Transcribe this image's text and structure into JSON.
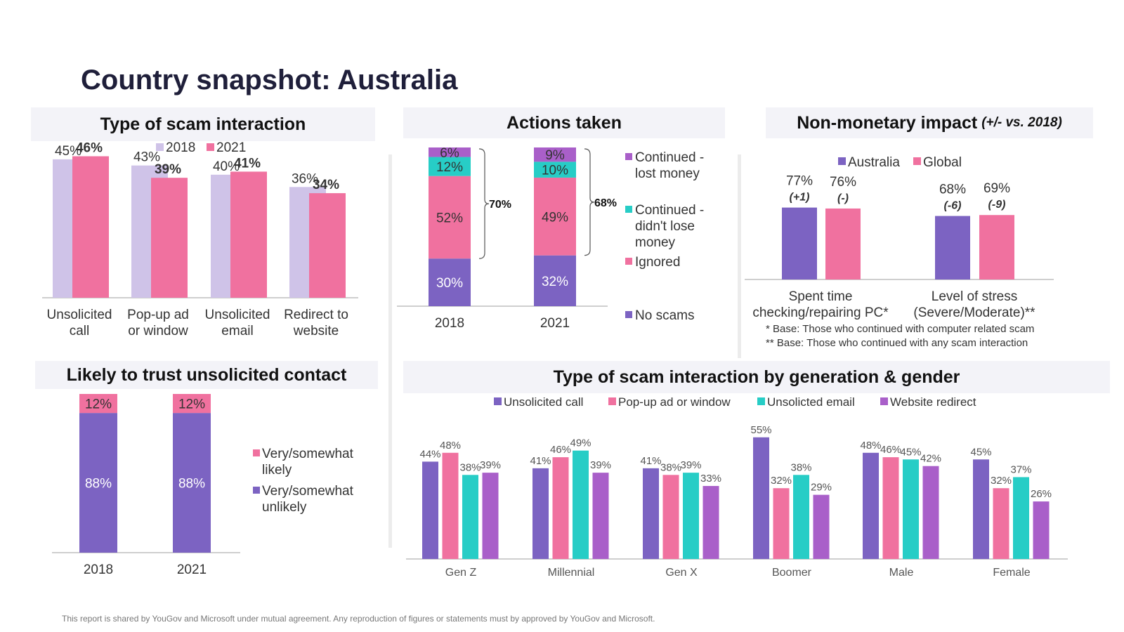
{
  "page": {
    "title": "Country snapshot: Australia",
    "footer": "This report is shared by YouGov and Microsoft under mutual agreement. Any reproduction of figures or statements must by approved by YouGov and Microsoft."
  },
  "colors": {
    "purple": "#7c63c2",
    "pink": "#f0719f",
    "teal": "#27cdc6",
    "violet": "#a95fc9",
    "lavender": "#cfc3e8",
    "panel_bg": "#f3f3f8"
  },
  "panels": {
    "scam_type": {
      "title": "Type of scam interaction"
    },
    "actions": {
      "title": "Actions taken"
    },
    "impact": {
      "title": "Non-monetary impact",
      "subtitle": "(+/- vs. 2018)"
    },
    "trust": {
      "title": "Likely to trust unsolicited contact"
    },
    "generation": {
      "title": "Type of scam interaction by generation & gender"
    }
  },
  "chart_data": [
    {
      "id": "scam_type",
      "type": "bar",
      "categories": [
        "Unsolicited call",
        "Pop-up ad or window",
        "Unsolicited email",
        "Redirect to website"
      ],
      "category_lines": [
        [
          "Unsolicited",
          "call"
        ],
        [
          "Pop-up ad",
          "or window"
        ],
        [
          "Unsolicited",
          "email"
        ],
        [
          "Redirect to",
          "website"
        ]
      ],
      "series": [
        {
          "name": "2018",
          "values": [
            45,
            43,
            40,
            36
          ],
          "labels": [
            "45%",
            "43%",
            "40%",
            "36%"
          ],
          "color": "#cfc3e8"
        },
        {
          "name": "2021",
          "values": [
            46,
            39,
            41,
            34
          ],
          "labels": [
            "46%",
            "39%",
            "41%",
            "34%"
          ],
          "color": "#f0719f"
        }
      ],
      "ylim": [
        0,
        50
      ],
      "legend": "top"
    },
    {
      "id": "actions",
      "type": "bar",
      "stacked": true,
      "categories": [
        "2018",
        "2021"
      ],
      "series": [
        {
          "name": "No scams",
          "values": [
            30,
            32
          ],
          "labels": [
            "30%",
            "32%"
          ],
          "color": "#7c63c2"
        },
        {
          "name": "Ignored",
          "values": [
            52,
            49
          ],
          "labels": [
            "52%",
            "49%"
          ],
          "color": "#f0719f"
        },
        {
          "name": "Continued - didn't lose money",
          "name_lines": [
            "Continued -",
            "didn't lose",
            "money"
          ],
          "values": [
            12,
            10
          ],
          "labels": [
            "12%",
            "10%"
          ],
          "color": "#27cdc6"
        },
        {
          "name": "Continued - lost money",
          "name_lines": [
            "Continued -",
            "lost money"
          ],
          "values": [
            6,
            9
          ],
          "labels": [
            "6%",
            "9%"
          ],
          "color": "#a95fc9"
        }
      ],
      "bracket_labels": [
        "70%",
        "68%"
      ],
      "legend": "right"
    },
    {
      "id": "impact",
      "type": "bar",
      "categories": [
        "Spent time checking/repairing PC*",
        "Level of stress (Severe/Moderate)**"
      ],
      "category_lines": [
        [
          "Spent time",
          "checking/repairing PC*"
        ],
        [
          "Level of stress",
          "(Severe/Moderate)**"
        ]
      ],
      "series": [
        {
          "name": "Australia",
          "values": [
            77,
            68
          ],
          "labels": [
            "77%",
            "68%"
          ],
          "changes": [
            "(+1)",
            "(-6)"
          ],
          "color": "#7c63c2"
        },
        {
          "name": "Global",
          "values": [
            76,
            69
          ],
          "labels": [
            "76%",
            "69%"
          ],
          "changes": [
            "(-)",
            "(-9)"
          ],
          "color": "#f0719f"
        }
      ],
      "notes": [
        "* Base: Those who continued with computer related scam",
        "** Base: Those who continued with any scam interaction"
      ],
      "legend": "top"
    },
    {
      "id": "trust",
      "type": "bar",
      "stacked": true,
      "categories": [
        "2018",
        "2021"
      ],
      "series": [
        {
          "name": "Very/somewhat unlikely",
          "name_lines": [
            "Very/somewhat",
            "unlikely"
          ],
          "values": [
            88,
            88
          ],
          "labels": [
            "88%",
            "88%"
          ],
          "color": "#7c63c2"
        },
        {
          "name": "Very/somewhat likely",
          "name_lines": [
            "Very/somewhat",
            "likely"
          ],
          "values": [
            12,
            12
          ],
          "labels": [
            "12%",
            "12%"
          ],
          "color": "#f0719f"
        }
      ],
      "legend": "right"
    },
    {
      "id": "generation",
      "type": "bar",
      "categories": [
        "Gen Z",
        "Millennial",
        "Gen X",
        "Boomer",
        "Male",
        "Female"
      ],
      "series": [
        {
          "name": "Unsolicited call",
          "values": [
            44,
            41,
            41,
            55,
            48,
            45
          ],
          "labels": [
            "44%",
            "41%",
            "41%",
            "55%",
            "48%",
            "45%"
          ],
          "color": "#7c63c2"
        },
        {
          "name": "Pop-up ad or window",
          "values": [
            48,
            46,
            38,
            32,
            46,
            32
          ],
          "labels": [
            "48%",
            "46%",
            "38%",
            "32%",
            "46%",
            "32%"
          ],
          "color": "#f0719f"
        },
        {
          "name": "Unsolicted email",
          "values": [
            38,
            49,
            39,
            38,
            45,
            37
          ],
          "labels": [
            "38%",
            "49%",
            "39%",
            "38%",
            "45%",
            "37%"
          ],
          "color": "#27cdc6"
        },
        {
          "name": "Website redirect",
          "values": [
            39,
            39,
            33,
            29,
            42,
            26
          ],
          "labels": [
            "39%",
            "39%",
            "33%",
            "29%",
            "42%",
            "26%"
          ],
          "color": "#a95fc9"
        }
      ],
      "ylim": [
        0,
        58
      ],
      "legend": "top"
    }
  ]
}
